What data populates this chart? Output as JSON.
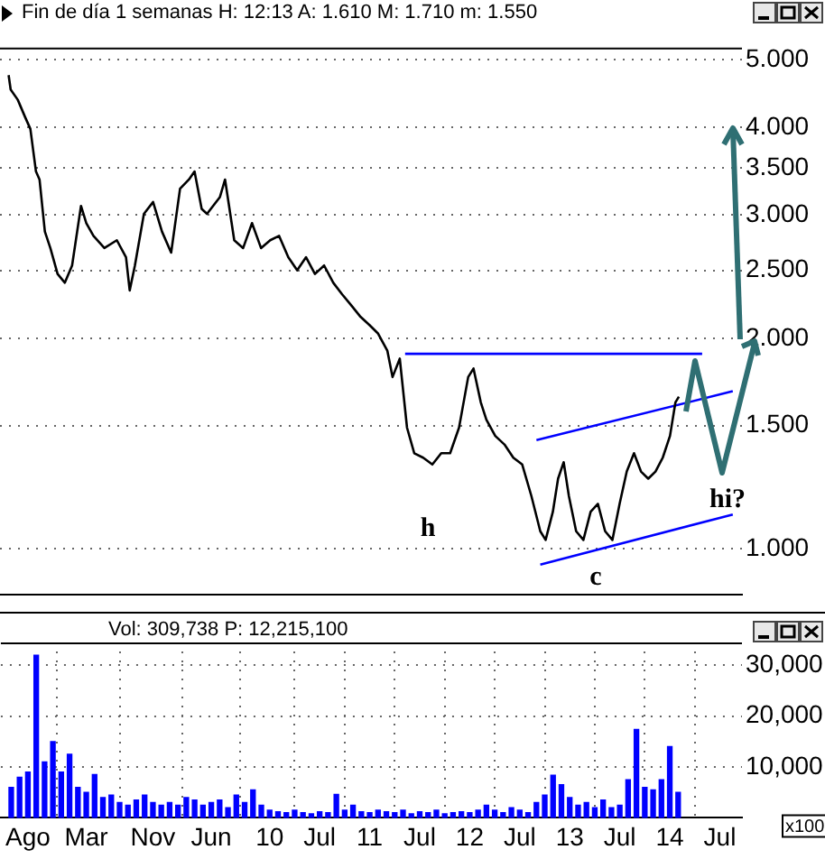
{
  "chart_data": [
    {
      "type": "line",
      "title": "Fin de día 1 semanas  H: 12:13  A: 1.610  M: 1.710  m: 1.550",
      "log": "y",
      "grid": true,
      "tick_labels": "y",
      "marker": "none",
      "xlim": [
        "2007-04-24",
        "2014-09-21"
      ],
      "xticks": [
        {
          "value": "2007-08-01",
          "label": null
        },
        {
          "value": "2008-03-01",
          "label": null
        },
        {
          "value": "2008-11-01",
          "label": null
        },
        {
          "value": "2009-06-01",
          "label": null
        },
        {
          "value": "2010-01-01",
          "label": null
        },
        {
          "value": "2010-07-01",
          "label": null
        },
        {
          "value": "2011-01-01",
          "label": null
        },
        {
          "value": "2011-07-01",
          "label": null
        },
        {
          "value": "2012-01-01",
          "label": null
        },
        {
          "value": "2012-07-01",
          "label": null
        },
        {
          "value": "2013-01-01",
          "label": null
        },
        {
          "value": "2013-07-01",
          "label": null
        },
        {
          "value": "2014-01-01",
          "label": null
        },
        {
          "value": "2014-07-01",
          "label": null
        }
      ],
      "ylim": [
        0.86,
        5.2
      ],
      "yticks": [
        {
          "value": 1,
          "label": "1.000"
        },
        {
          "value": 1.5,
          "label": "1.500"
        },
        {
          "value": 2,
          "label": "2.000"
        },
        {
          "value": 2.5,
          "label": "2.500"
        },
        {
          "value": 3,
          "label": "3.000"
        },
        {
          "value": 3.5,
          "label": "3.500"
        },
        {
          "value": 4,
          "label": "4.000"
        },
        {
          "value": 5,
          "label": "5.000"
        }
      ],
      "series": [
        {
          "color": "#000000",
          "x": [
            "2007-05-25",
            "2007-06-02",
            "2007-06-28",
            "2007-07-24",
            "2007-08-13",
            "2007-09-03",
            "2007-09-16",
            "2007-10-05",
            "2007-10-25",
            "2007-11-21",
            "2007-12-17",
            "2008-01-13",
            "2008-02-15",
            "2008-03-04",
            "2008-03-30",
            "2008-05-09",
            "2008-06-24",
            "2008-07-27",
            "2008-08-10",
            "2008-08-29",
            "2008-10-01",
            "2008-11-04",
            "2008-12-06",
            "2009-01-09",
            "2009-02-11",
            "2009-03-13",
            "2009-04-03",
            "2009-04-29",
            "2009-05-18",
            "2009-07-04",
            "2009-07-23",
            "2009-08-26",
            "2009-09-28",
            "2009-10-30",
            "2009-12-02",
            "2010-01-05",
            "2010-02-07",
            "2010-03-10",
            "2010-04-12",
            "2010-05-14",
            "2010-06-16",
            "2010-07-19",
            "2010-08-22",
            "2010-09-24",
            "2010-10-26",
            "2010-11-28",
            "2011-01-01",
            "2011-02-03",
            "2011-03-06",
            "2011-03-25",
            "2011-04-21",
            "2011-05-17",
            "2011-06-13",
            "2011-07-15",
            "2011-08-18",
            "2011-09-20",
            "2011-10-22",
            "2011-11-24",
            "2011-12-27",
            "2012-01-16",
            "2012-02-12",
            "2012-03-02",
            "2012-04-04",
            "2012-05-07",
            "2012-06-09",
            "2012-07-11",
            "2012-08-14",
            "2012-09-16",
            "2012-10-05",
            "2012-11-01",
            "2012-11-20",
            "2012-12-10",
            "2012-12-29",
            "2013-01-25",
            "2013-02-21",
            "2013-03-17",
            "2013-04-13",
            "2013-05-09",
            "2013-06-05",
            "2013-07-01",
            "2013-07-27",
            "2013-08-23",
            "2013-09-18",
            "2013-10-14",
            "2013-11-10",
            "2013-12-06",
            "2014-01-02",
            "2014-01-22",
            "2014-02-04"
          ],
          "values": [
            4.75,
            4.53,
            4.38,
            4.14,
            3.98,
            3.46,
            3.37,
            2.84,
            2.69,
            2.47,
            2.4,
            2.54,
            3.09,
            2.92,
            2.8,
            2.69,
            2.76,
            2.61,
            2.34,
            2.54,
            3.01,
            3.13,
            2.84,
            2.65,
            3.27,
            3.37,
            3.46,
            3.06,
            3.01,
            3.18,
            3.37,
            2.76,
            2.69,
            2.92,
            2.69,
            2.76,
            2.8,
            2.61,
            2.5,
            2.61,
            2.47,
            2.54,
            2.4,
            2.31,
            2.23,
            2.15,
            2.09,
            2.03,
            1.92,
            1.76,
            1.87,
            1.49,
            1.37,
            1.35,
            1.32,
            1.37,
            1.37,
            1.49,
            1.76,
            1.81,
            1.62,
            1.53,
            1.45,
            1.41,
            1.35,
            1.32,
            1.19,
            1.06,
            1.03,
            1.13,
            1.26,
            1.33,
            1.19,
            1.06,
            1.03,
            1.13,
            1.16,
            1.06,
            1.03,
            1.16,
            1.29,
            1.37,
            1.29,
            1.26,
            1.29,
            1.35,
            1.45,
            1.62,
            1.65
          ]
        },
        {
          "type": "line",
          "color": "#0000ff",
          "x": [
            "2011-05-10",
            "2014-04-28"
          ],
          "values": [
            1.9,
            1.9
          ]
        },
        {
          "type": "line",
          "color": "#0000ff",
          "x": [
            "2012-09-02",
            "2014-08-18"
          ],
          "values": [
            1.43,
            1.68
          ]
        },
        {
          "type": "line",
          "color": "#0000ff",
          "x": [
            "2012-09-16",
            "2014-08-18"
          ],
          "values": [
            0.95,
            1.12
          ]
        }
      ],
      "annotations": [
        "h",
        "c",
        "hi?"
      ]
    },
    {
      "type": "bar",
      "title": "Vol: 309,738  P: 12,215,100",
      "color": "#0000ff",
      "grid": true,
      "xlim": [
        "2007-04-24",
        "2014-09-21"
      ],
      "xticks": [
        {
          "value": "2007-08-01",
          "label": "Ago"
        },
        {
          "value": "2008-03-01",
          "label": "Mar"
        },
        {
          "value": "2008-11-01",
          "label": "Nov"
        },
        {
          "value": "2009-06-01",
          "label": "Jun"
        },
        {
          "value": "2010-01-01",
          "label": "10"
        },
        {
          "value": "2010-07-01",
          "label": "Jul"
        },
        {
          "value": "2011-01-01",
          "label": "11"
        },
        {
          "value": "2011-07-01",
          "label": "Jul"
        },
        {
          "value": "2012-01-01",
          "label": "12"
        },
        {
          "value": "2012-07-01",
          "label": "Jul"
        },
        {
          "value": "2013-01-01",
          "label": "13"
        },
        {
          "value": "2013-07-01",
          "label": "Jul"
        },
        {
          "value": "2014-01-01",
          "label": "14"
        },
        {
          "value": "2014-07-01",
          "label": "Jul"
        }
      ],
      "ylim": [
        0,
        34500
      ],
      "yticks": [
        {
          "value": 10000,
          "label": "10,000"
        },
        {
          "value": 20000,
          "label": "20,000"
        },
        {
          "value": 30000,
          "label": "30,000"
        }
      ],
      "x": [
        "2007-06",
        "2007-07",
        "2007-08",
        "2007-09",
        "2007-10",
        "2007-11",
        "2007-12",
        "2008-01",
        "2008-02",
        "2008-03",
        "2008-04",
        "2008-05",
        "2008-06",
        "2008-07",
        "2008-08",
        "2008-09",
        "2008-10",
        "2008-11",
        "2008-12",
        "2009-01",
        "2009-02",
        "2009-03",
        "2009-04",
        "2009-05",
        "2009-06",
        "2009-07",
        "2009-08",
        "2009-09",
        "2009-10",
        "2009-11",
        "2009-12",
        "2010-01",
        "2010-02",
        "2010-03",
        "2010-04",
        "2010-05",
        "2010-06",
        "2010-07",
        "2010-08",
        "2010-09",
        "2010-10",
        "2010-11",
        "2010-12",
        "2011-01",
        "2011-02",
        "2011-03",
        "2011-04",
        "2011-05",
        "2011-06",
        "2011-07",
        "2011-08",
        "2011-09",
        "2011-10",
        "2011-11",
        "2011-12",
        "2012-01",
        "2012-02",
        "2012-03",
        "2012-04",
        "2012-05",
        "2012-06",
        "2012-07",
        "2012-08",
        "2012-09",
        "2012-10",
        "2012-11",
        "2012-12",
        "2013-01",
        "2013-02",
        "2013-03",
        "2013-04",
        "2013-05",
        "2013-06",
        "2013-07",
        "2013-08",
        "2013-09",
        "2013-10",
        "2013-11",
        "2013-12",
        "2014-01",
        "2014-02"
      ],
      "values": [
        6000,
        8000,
        9000,
        32000,
        11000,
        15000,
        9000,
        12500,
        6000,
        5000,
        8500,
        4000,
        4500,
        3000,
        2500,
        3500,
        4500,
        3000,
        2500,
        3000,
        2500,
        4000,
        3500,
        2500,
        3000,
        3500,
        2000,
        4500,
        3000,
        5500,
        2500,
        1500,
        1200,
        1000,
        1500,
        1000,
        800,
        1200,
        1000,
        4600,
        1500,
        2500,
        1200,
        1000,
        1500,
        1200,
        1000,
        1500,
        800,
        1200,
        1000,
        1500,
        800,
        1000,
        1200,
        1000,
        1500,
        2500,
        1500,
        1000,
        2000,
        1500,
        1000,
        3000,
        4500,
        8400,
        6500,
        4000,
        2500,
        3000,
        2000,
        3500,
        2000,
        2500,
        7500,
        17400,
        6000,
        5500,
        7500,
        14000,
        5000
      ],
      "annotations": [
        "x100"
      ]
    }
  ]
}
